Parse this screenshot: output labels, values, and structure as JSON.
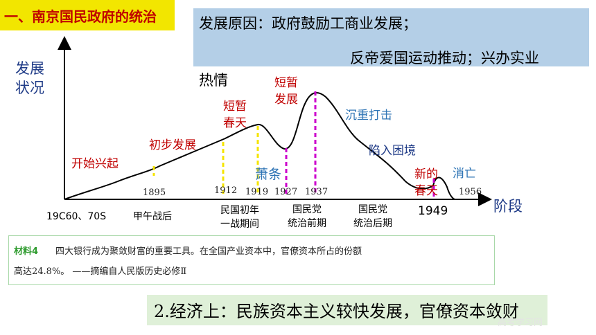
{
  "title": "一、南京国民政府的统治",
  "reason": {
    "line1": "发展原因：政府鼓励工商业发展；",
    "line2": "反帝爱国运动推动；兴办实业",
    "line3": "热情"
  },
  "axes": {
    "y_label": "发展\n状况",
    "x_label": "阶段"
  },
  "stages": {
    "start": "开始兴起",
    "initial": "初步发展",
    "short_spring_1": "短暂\n春天",
    "short_boom": "短暂\n发展",
    "depression": "萧条",
    "heavy_blow": "沉重打击",
    "trapped": "陷入困境",
    "new_spring": "新的\n春天",
    "demise": "消亡"
  },
  "years": {
    "y1895": "1895",
    "y1912": "1912",
    "y1919": "1919",
    "y1927": "1927",
    "y1937": "1937",
    "y1949": "1949",
    "y1956": "1956"
  },
  "periods": {
    "p1": "19C60、70S",
    "p2": "甲午战后",
    "p3": "民国初年\n一战期间",
    "p4": "国民党\n统治前期",
    "p5": "国民党\n统治后期"
  },
  "material": {
    "label": "材料4",
    "text1": "四大银行成为聚敛财富的重要工具。在全国产业资本中，官僚资本所占的份额",
    "text2": "高达24.8%。  ——摘编自人民版历史必修Ⅱ"
  },
  "conclusion": "2.经济上：民族资本主义较快发展，官僚资本敛财",
  "watermark": "高考学习网",
  "colors": {
    "title_bg": "#f2e600",
    "title_text": "#c00000",
    "reason_bg": "#b4cfe7",
    "axis_label": "#1f3b87",
    "stage_red": "#c00000",
    "stage_blue": "#2e74b5",
    "dash_yellow": "#f5e400",
    "dash_magenta": "#cc00cc",
    "conclusion_bg": "#dff0d8"
  }
}
